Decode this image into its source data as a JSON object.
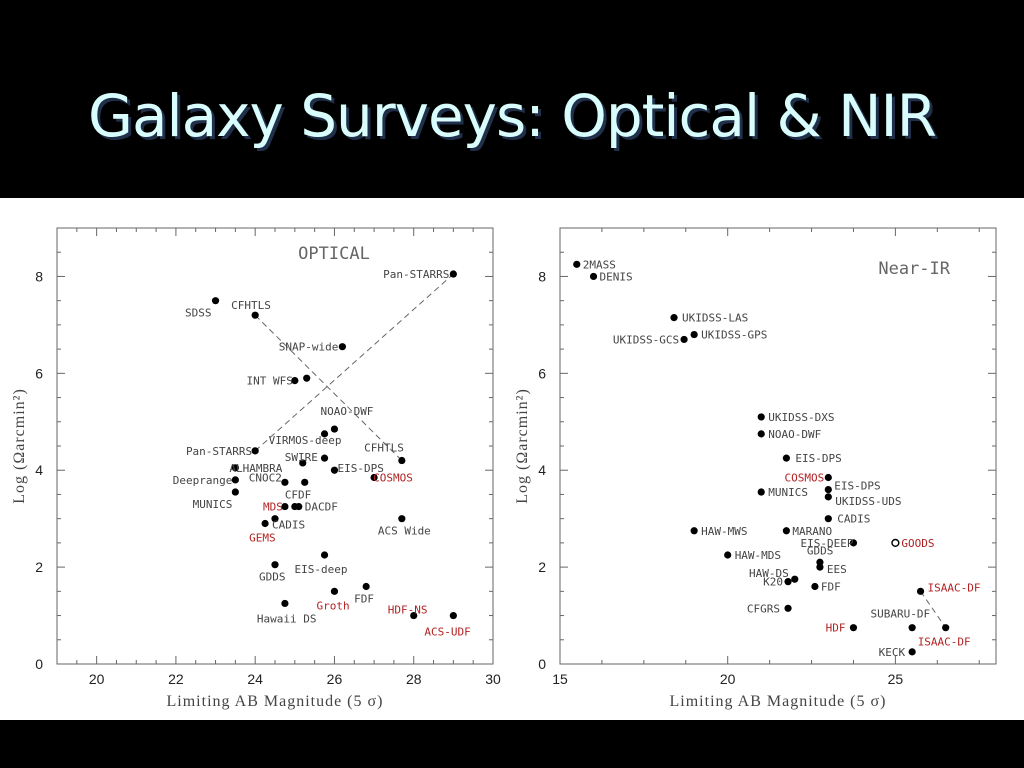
{
  "slide": {
    "title": "Galaxy Surveys: Optical & NIR"
  },
  "chart_data": [
    {
      "type": "scatter",
      "title": "OPTICAL",
      "xlabel": "Limiting AB Magnitude (5 σ)",
      "ylabel": "Log (Ωarcmin²)",
      "xlim": [
        19,
        30
      ],
      "ylim": [
        0,
        9
      ],
      "xticks": [
        20,
        22,
        24,
        26,
        28,
        30
      ],
      "yticks": [
        0,
        2,
        4,
        6,
        8
      ],
      "grid": false,
      "points": [
        {
          "x": 29.0,
          "y": 8.05,
          "label": "Pan-STARRS",
          "color": "#444",
          "anchor": "end",
          "dx": -4,
          "dy": 4
        },
        {
          "x": 23.0,
          "y": 7.5,
          "label": "SDSS",
          "color": "#444",
          "anchor": "end",
          "dx": -4,
          "dy": 16
        },
        {
          "x": 24.0,
          "y": 7.2,
          "label": "CFHTLS",
          "color": "#444",
          "anchor": "start",
          "dx": -24,
          "dy": -6
        },
        {
          "x": 26.2,
          "y": 6.55,
          "label": "SNAP-wide",
          "color": "#444",
          "anchor": "end",
          "dx": -4,
          "dy": 4
        },
        {
          "x": 25.0,
          "y": 5.85,
          "label": "INT WFS",
          "color": "#444",
          "anchor": "end",
          "dx": -2,
          "dy": 4
        },
        {
          "x": 25.3,
          "y": 5.9,
          "label": "",
          "color": "#444"
        },
        {
          "x": 26.0,
          "y": 4.85,
          "label": "NOAO-DWF",
          "color": "#444",
          "anchor": "start",
          "dx": -14,
          "dy": -14
        },
        {
          "x": 25.75,
          "y": 4.75,
          "label": "",
          "color": "#444"
        },
        {
          "x": 24.0,
          "y": 4.4,
          "label": "Pan-STARRS",
          "color": "#444",
          "anchor": "end",
          "dx": -3,
          "dy": 4
        },
        {
          "x": 27.7,
          "y": 4.2,
          "label": "CFHTLS",
          "color": "#444",
          "anchor": "end",
          "dx": 2,
          "dy": -9
        },
        {
          "x": 25.75,
          "y": 4.25,
          "label": "VIRMOS-deep",
          "color": "#444",
          "anchor": "end",
          "dx": 17,
          "dy": -14
        },
        {
          "x": 25.2,
          "y": 4.15,
          "label": "SWIRE",
          "color": "#444",
          "anchor": "start",
          "dx": -18,
          "dy": -2
        },
        {
          "x": 23.5,
          "y": 4.05,
          "label": "ALHAMBRA",
          "color": "#444",
          "anchor": "start",
          "dx": -6,
          "dy": 4
        },
        {
          "x": 26.0,
          "y": 4.0,
          "label": "EIS-DPS",
          "color": "#444",
          "anchor": "start",
          "dx": 3,
          "dy": 2
        },
        {
          "x": 27.0,
          "y": 3.85,
          "label": "COSMOS",
          "color": "#b22222",
          "anchor": "start",
          "dx": -1,
          "dy": 4
        },
        {
          "x": 23.5,
          "y": 3.8,
          "label": "Deeprange",
          "color": "#444",
          "anchor": "end",
          "dx": -3,
          "dy": 4
        },
        {
          "x": 24.75,
          "y": 3.75,
          "label": "CNOC2",
          "color": "#444",
          "anchor": "end",
          "dx": -3,
          "dy": -1
        },
        {
          "x": 25.25,
          "y": 3.75,
          "label": "",
          "color": "#444"
        },
        {
          "x": 23.5,
          "y": 3.55,
          "label": "MUNICS",
          "color": "#444",
          "anchor": "end",
          "dx": -3,
          "dy": 16
        },
        {
          "x": 25.0,
          "y": 3.25,
          "label": "CFDF",
          "color": "#444",
          "anchor": "start",
          "dx": -10,
          "dy": -8
        },
        {
          "x": 25.1,
          "y": 3.25,
          "label": "DACDF",
          "color": "#444",
          "anchor": "start",
          "dx": 6,
          "dy": 4
        },
        {
          "x": 24.75,
          "y": 3.25,
          "label": "MDS",
          "color": "#b22222",
          "anchor": "end",
          "dx": -2,
          "dy": 4
        },
        {
          "x": 27.7,
          "y": 3.0,
          "label": "ACS Wide",
          "color": "#444",
          "anchor": "start",
          "dx": -24,
          "dy": 16
        },
        {
          "x": 24.5,
          "y": 3.0,
          "label": "CADIS",
          "color": "#444",
          "anchor": "start",
          "dx": -3,
          "dy": 10
        },
        {
          "x": 24.25,
          "y": 2.9,
          "label": "GEMS",
          "color": "#b22222",
          "anchor": "start",
          "dx": -16,
          "dy": 18
        },
        {
          "x": 25.75,
          "y": 2.25,
          "label": "EIS-deep",
          "color": "#444",
          "anchor": "start",
          "dx": -30,
          "dy": 18
        },
        {
          "x": 24.5,
          "y": 2.05,
          "label": "GDDS",
          "color": "#444",
          "anchor": "start",
          "dx": -16,
          "dy": 16
        },
        {
          "x": 26.8,
          "y": 1.6,
          "label": "FDF",
          "color": "#444",
          "anchor": "start",
          "dx": -12,
          "dy": 16
        },
        {
          "x": 26.0,
          "y": 1.5,
          "label": "Groth",
          "color": "#b22222",
          "anchor": "start",
          "dx": -18,
          "dy": 18
        },
        {
          "x": 24.75,
          "y": 1.25,
          "label": "Hawaii DS",
          "color": "#444",
          "anchor": "start",
          "dx": -28,
          "dy": 19
        },
        {
          "x": 28.0,
          "y": 1.0,
          "label": "HDF-NS",
          "color": "#b22222",
          "anchor": "start",
          "dx": -26,
          "dy": -2
        },
        {
          "x": 29.0,
          "y": 1.0,
          "label": "ACS-UDF",
          "color": "#b22222",
          "anchor": "start",
          "dx": -29,
          "dy": 20
        }
      ],
      "trendlines": [
        {
          "from": [
            24.0,
            4.4
          ],
          "to": [
            29.0,
            8.05
          ]
        },
        {
          "from": [
            24.0,
            7.2
          ],
          "to": [
            27.7,
            4.2
          ]
        }
      ]
    },
    {
      "type": "scatter",
      "title": "Near-IR",
      "xlabel": "Limiting AB Magnitude (5 σ)",
      "ylabel": "Log (Ωarcmin²)",
      "xlim": [
        15,
        28
      ],
      "ylim": [
        0,
        9
      ],
      "xticks": [
        15,
        20,
        25
      ],
      "yticks": [
        0,
        2,
        4,
        6,
        8
      ],
      "grid": false,
      "points": [
        {
          "x": 15.5,
          "y": 8.25,
          "label": "2MASS",
          "color": "#444",
          "anchor": "start",
          "dx": 6,
          "dy": 4
        },
        {
          "x": 16.0,
          "y": 8.0,
          "label": "DENIS",
          "color": "#444",
          "anchor": "start",
          "dx": 6,
          "dy": 4
        },
        {
          "x": 18.4,
          "y": 7.15,
          "label": "UKIDSS-LAS",
          "color": "#444",
          "anchor": "start",
          "dx": 8,
          "dy": 4
        },
        {
          "x": 19.0,
          "y": 6.8,
          "label": "UKIDSS-GPS",
          "color": "#444",
          "anchor": "start",
          "dx": 7,
          "dy": 4
        },
        {
          "x": 18.7,
          "y": 6.7,
          "label": "UKIDSS-GCS",
          "color": "#444",
          "anchor": "end",
          "dx": -5,
          "dy": 4
        },
        {
          "x": 21.0,
          "y": 5.1,
          "label": "UKIDSS-DXS",
          "color": "#444",
          "anchor": "start",
          "dx": 7,
          "dy": 4
        },
        {
          "x": 21.0,
          "y": 4.75,
          "label": "NOAO-DWF",
          "color": "#444",
          "anchor": "start",
          "dx": 7,
          "dy": 4
        },
        {
          "x": 21.75,
          "y": 4.25,
          "label": "EIS-DPS",
          "color": "#444",
          "anchor": "start",
          "dx": 9,
          "dy": 4
        },
        {
          "x": 23.0,
          "y": 3.85,
          "label": "COSMOS",
          "color": "#b22222",
          "anchor": "end",
          "dx": -4,
          "dy": 4
        },
        {
          "x": 23.0,
          "y": 3.6,
          "label": "EIS-DPS",
          "color": "#444",
          "anchor": "start",
          "dx": 6,
          "dy": 0
        },
        {
          "x": 21.0,
          "y": 3.55,
          "label": "MUNICS",
          "color": "#444",
          "anchor": "start",
          "dx": 7,
          "dy": 4
        },
        {
          "x": 23.0,
          "y": 3.45,
          "label": "UKIDSS-UDS",
          "color": "#444",
          "anchor": "start",
          "dx": 7,
          "dy": 8
        },
        {
          "x": 23.0,
          "y": 3.0,
          "label": "CADIS",
          "color": "#444",
          "anchor": "start",
          "dx": 9,
          "dy": 4
        },
        {
          "x": 19.0,
          "y": 2.75,
          "label": "HAW-MWS",
          "color": "#444",
          "anchor": "start",
          "dx": 7,
          "dy": 4
        },
        {
          "x": 21.75,
          "y": 2.75,
          "label": "MARANO",
          "color": "#444",
          "anchor": "start",
          "dx": 6,
          "dy": 4
        },
        {
          "x": 23.75,
          "y": 2.5,
          "label": "EIS-DEEP",
          "color": "#444",
          "anchor": "end",
          "dx": 0,
          "dy": 4
        },
        {
          "x": 25.0,
          "y": 2.5,
          "label": "GOODS",
          "color": "#b22222",
          "anchor": "start",
          "dx": 6,
          "dy": 4
        },
        {
          "x": 20.0,
          "y": 2.25,
          "label": "HAW-MDS",
          "color": "#444",
          "anchor": "start",
          "dx": 7,
          "dy": 4
        },
        {
          "x": 22.75,
          "y": 2.1,
          "label": "GDDS",
          "color": "#444",
          "anchor": "start",
          "dx": -13,
          "dy": -8
        },
        {
          "x": 22.75,
          "y": 2.0,
          "label": "EES",
          "color": "#444",
          "anchor": "start",
          "dx": 7,
          "dy": 6
        },
        {
          "x": 22.0,
          "y": 1.75,
          "label": "HAW-DS",
          "color": "#444",
          "anchor": "end",
          "dx": -6,
          "dy": -2
        },
        {
          "x": 21.8,
          "y": 1.7,
          "label": "K20",
          "color": "#444",
          "anchor": "end",
          "dx": -5,
          "dy": 4
        },
        {
          "x": 22.6,
          "y": 1.6,
          "label": "FDF",
          "color": "#444",
          "anchor": "start",
          "dx": 6,
          "dy": 4
        },
        {
          "x": 25.75,
          "y": 1.5,
          "label": "ISAAC-DF",
          "color": "#b22222",
          "anchor": "start",
          "dx": 7,
          "dy": 0
        },
        {
          "x": 21.8,
          "y": 1.15,
          "label": "CFGRS",
          "color": "#444",
          "anchor": "end",
          "dx": -8,
          "dy": 4
        },
        {
          "x": 25.5,
          "y": 0.75,
          "label": "SUBARU-DF",
          "color": "#444",
          "anchor": "end",
          "dx": 18,
          "dy": -10
        },
        {
          "x": 23.75,
          "y": 0.75,
          "label": "HDF",
          "color": "#b22222",
          "anchor": "end",
          "dx": -8,
          "dy": 4
        },
        {
          "x": 26.5,
          "y": 0.75,
          "label": "ISAAC-DF",
          "color": "#b22222",
          "anchor": "start",
          "dx": -28,
          "dy": 18
        },
        {
          "x": 25.5,
          "y": 0.25,
          "label": "KECK",
          "color": "#444",
          "anchor": "end",
          "dx": -7,
          "dy": 4
        }
      ],
      "open_points": [
        {
          "x": 25.0,
          "y": 2.5
        }
      ],
      "trendlines": [
        {
          "from": [
            25.75,
            1.5
          ],
          "to": [
            26.5,
            0.75
          ]
        }
      ]
    }
  ]
}
